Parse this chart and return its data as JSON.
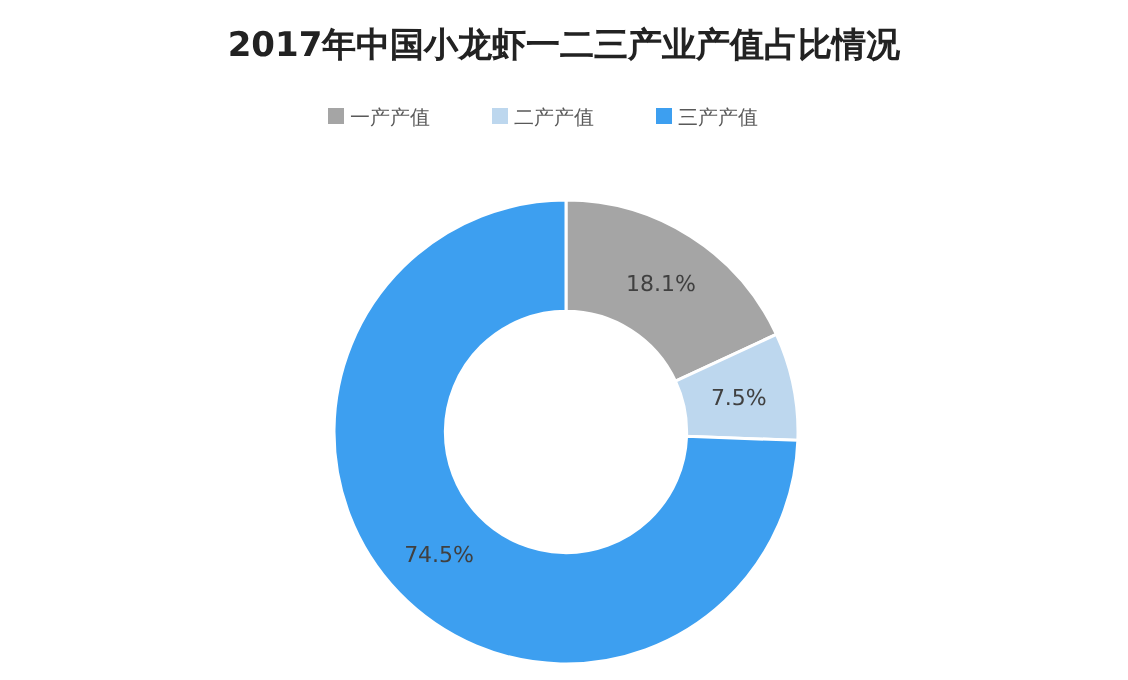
{
  "chart_data": {
    "type": "donut",
    "title": "2017年中国小龙虾一二三产业产值占比情况",
    "categories": [
      "一产产值",
      "二产产值",
      "三产产值"
    ],
    "values": [
      18.1,
      7.5,
      74.5
    ],
    "value_labels": [
      "18.1%",
      "7.5%",
      "74.5%"
    ],
    "colors": [
      "#a5a5a5",
      "#bdd7ee",
      "#3d9ff0"
    ],
    "legend": "top"
  }
}
